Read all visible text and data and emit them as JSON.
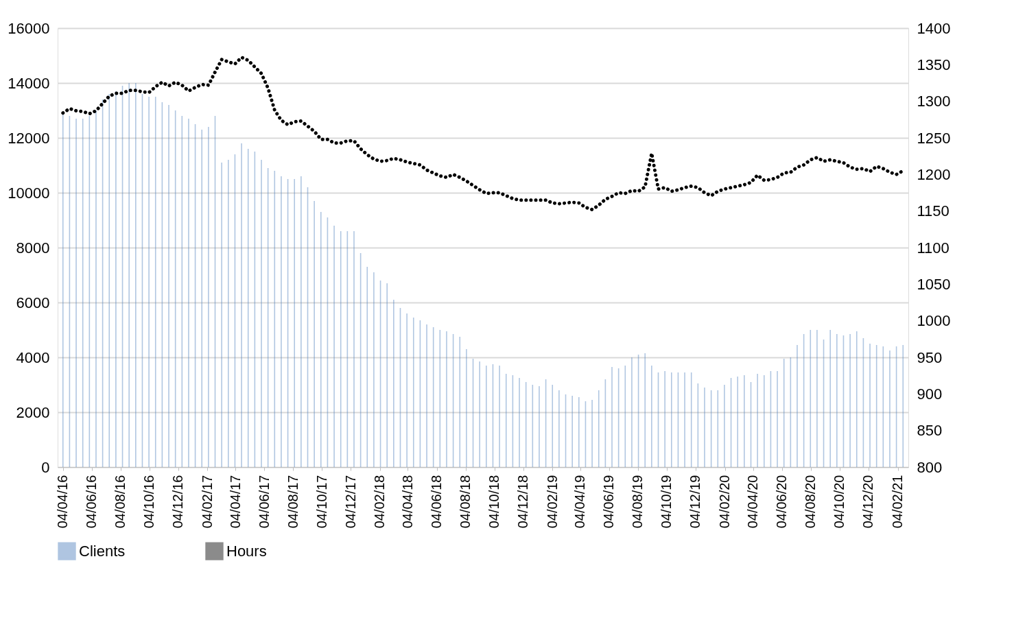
{
  "chart_data": {
    "type": "bar",
    "grid": "y",
    "legend": "bottom",
    "line_style": "dotted",
    "xlim": [
      "2016-03-31",
      "2021-02-19"
    ],
    "xticks": [
      {
        "value": "2016-04-04",
        "label": "04/04/16"
      },
      {
        "value": "2016-06-04",
        "label": "04/06/16"
      },
      {
        "value": "2016-08-04",
        "label": "04/08/16"
      },
      {
        "value": "2016-10-04",
        "label": "04/10/16"
      },
      {
        "value": "2016-12-04",
        "label": "04/12/16"
      },
      {
        "value": "2017-02-04",
        "label": "04/02/17"
      },
      {
        "value": "2017-04-04",
        "label": "04/04/17"
      },
      {
        "value": "2017-06-04",
        "label": "04/06/17"
      },
      {
        "value": "2017-08-04",
        "label": "04/08/17"
      },
      {
        "value": "2017-10-04",
        "label": "04/10/17"
      },
      {
        "value": "2017-12-04",
        "label": "04/12/17"
      },
      {
        "value": "2018-02-04",
        "label": "04/02/18"
      },
      {
        "value": "2018-04-04",
        "label": "04/04/18"
      },
      {
        "value": "2018-06-04",
        "label": "04/06/18"
      },
      {
        "value": "2018-08-04",
        "label": "04/08/18"
      },
      {
        "value": "2018-10-04",
        "label": "04/10/18"
      },
      {
        "value": "2018-12-04",
        "label": "04/12/18"
      },
      {
        "value": "2019-02-04",
        "label": "04/02/19"
      },
      {
        "value": "2019-04-04",
        "label": "04/04/19"
      },
      {
        "value": "2019-06-04",
        "label": "04/06/19"
      },
      {
        "value": "2019-08-04",
        "label": "04/08/19"
      },
      {
        "value": "2019-10-04",
        "label": "04/10/19"
      },
      {
        "value": "2019-12-04",
        "label": "04/12/19"
      },
      {
        "value": "2020-02-04",
        "label": "04/02/20"
      },
      {
        "value": "2020-04-04",
        "label": "04/04/20"
      },
      {
        "value": "2020-06-04",
        "label": "04/06/20"
      },
      {
        "value": "2020-08-04",
        "label": "04/08/20"
      },
      {
        "value": "2020-10-04",
        "label": "04/10/20"
      },
      {
        "value": "2020-12-04",
        "label": "04/12/20"
      },
      {
        "value": "2021-02-04",
        "label": "04/02/21"
      }
    ],
    "ylim": [
      0,
      16000
    ],
    "yticks": [
      0,
      2000,
      4000,
      6000,
      8000,
      10000,
      12000,
      14000,
      16000
    ],
    "y2lim": [
      800,
      1400
    ],
    "y2ticks": [
      800,
      850,
      900,
      950,
      1000,
      1050,
      1100,
      1150,
      1200,
      1250,
      1300,
      1350,
      1400
    ],
    "x": [
      "2016-04-04",
      "2016-04-18",
      "2016-05-02",
      "2016-05-16",
      "2016-05-30",
      "2016-06-13",
      "2016-06-27",
      "2016-07-11",
      "2016-07-25",
      "2016-08-08",
      "2016-08-22",
      "2016-09-05",
      "2016-09-19",
      "2016-10-03",
      "2016-10-17",
      "2016-10-31",
      "2016-11-14",
      "2016-11-28",
      "2016-12-12",
      "2016-12-26",
      "2017-01-09",
      "2017-01-23",
      "2017-02-06",
      "2017-02-20",
      "2017-03-06",
      "2017-03-20",
      "2017-04-03",
      "2017-04-17",
      "2017-05-01",
      "2017-05-15",
      "2017-05-29",
      "2017-06-12",
      "2017-06-26",
      "2017-07-10",
      "2017-07-24",
      "2017-08-07",
      "2017-08-21",
      "2017-09-04",
      "2017-09-18",
      "2017-10-02",
      "2017-10-16",
      "2017-10-30",
      "2017-11-13",
      "2017-11-27",
      "2017-12-11",
      "2017-12-25",
      "2018-01-08",
      "2018-01-22",
      "2018-02-05",
      "2018-02-19",
      "2018-03-05",
      "2018-03-19",
      "2018-04-02",
      "2018-04-16",
      "2018-04-30",
      "2018-05-14",
      "2018-05-28",
      "2018-06-11",
      "2018-06-25",
      "2018-07-09",
      "2018-07-23",
      "2018-08-06",
      "2018-08-20",
      "2018-09-03",
      "2018-09-17",
      "2018-10-01",
      "2018-10-15",
      "2018-10-29",
      "2018-11-12",
      "2018-11-26",
      "2018-12-10",
      "2018-12-24",
      "2019-01-07",
      "2019-01-21",
      "2019-02-04",
      "2019-02-18",
      "2019-03-04",
      "2019-03-18",
      "2019-04-01",
      "2019-04-15",
      "2019-04-29",
      "2019-05-13",
      "2019-05-27",
      "2019-06-10",
      "2019-06-24",
      "2019-07-08",
      "2019-07-22",
      "2019-08-05",
      "2019-08-19",
      "2019-09-02",
      "2019-09-16",
      "2019-09-30",
      "2019-10-14",
      "2019-10-28",
      "2019-11-11",
      "2019-11-25",
      "2019-12-09",
      "2019-12-23",
      "2020-01-06",
      "2020-01-20",
      "2020-02-03",
      "2020-02-17",
      "2020-03-02",
      "2020-03-16",
      "2020-03-30",
      "2020-04-13",
      "2020-04-27",
      "2020-05-11",
      "2020-05-25",
      "2020-06-08",
      "2020-06-22",
      "2020-07-06",
      "2020-07-20",
      "2020-08-03",
      "2020-08-17",
      "2020-08-31",
      "2020-09-14",
      "2020-09-28",
      "2020-10-12",
      "2020-10-26",
      "2020-11-09",
      "2020-11-23",
      "2020-12-07",
      "2020-12-21",
      "2021-01-04",
      "2021-01-18",
      "2021-02-01",
      "2021-02-15"
    ],
    "series": [
      {
        "name": "Clients",
        "color": "#4f81bd",
        "values": [
          12900,
          12800,
          12700,
          12700,
          12800,
          13000,
          13400,
          13600,
          13700,
          13900,
          14000,
          14000,
          13600,
          13500,
          13500,
          13300,
          13200,
          13000,
          12800,
          12700,
          12500,
          12300,
          12400,
          12800,
          11100,
          11200,
          11400,
          11800,
          11600,
          11500,
          11200,
          10900,
          10800,
          10600,
          10500,
          10500,
          10600,
          10200,
          9700,
          9300,
          9100,
          8800,
          8600,
          8600,
          8600,
          7800,
          7300,
          7100,
          6800,
          6700,
          6100,
          5800,
          5600,
          5450,
          5350,
          5200,
          5100,
          5000,
          4950,
          4850,
          4750,
          4300,
          3950,
          3850,
          3700,
          3750,
          3700,
          3400,
          3350,
          3250,
          3100,
          3000,
          2950,
          3200,
          3000,
          2800,
          2650,
          2600,
          2550,
          2400,
          2450,
          2800,
          3200,
          3650,
          3600,
          3700,
          4000,
          4100,
          4150,
          3700,
          3450,
          3500,
          3450,
          3450,
          3450,
          3450,
          3050,
          2900,
          2800,
          2800,
          3000,
          3250,
          3300,
          3350,
          3100,
          3400,
          3350,
          3500,
          3500,
          3950,
          4000,
          4450,
          4850,
          5000,
          5000,
          4650,
          5000,
          4850,
          4800,
          4850,
          4950,
          4700,
          4500,
          4450,
          4400,
          4250,
          4400,
          4450
        ]
      },
      {
        "name": "Hours",
        "type": "line",
        "axis": "y2",
        "color": "#000000",
        "values": [
          1284,
          1290,
          1287,
          1286,
          1283,
          1287,
          1297,
          1307,
          1311,
          1311,
          1315,
          1315,
          1313,
          1312,
          1320,
          1326,
          1321,
          1326,
          1322,
          1314,
          1319,
          1323,
          1322,
          1340,
          1357,
          1354,
          1351,
          1360,
          1356,
          1347,
          1338,
          1318,
          1288,
          1274,
          1268,
          1272,
          1273,
          1266,
          1259,
          1248,
          1248,
          1243,
          1243,
          1246,
          1246,
          1235,
          1227,
          1221,
          1218,
          1219,
          1222,
          1220,
          1217,
          1215,
          1213,
          1206,
          1202,
          1198,
          1196,
          1200,
          1196,
          1191,
          1185,
          1179,
          1174,
          1175,
          1175,
          1171,
          1167,
          1165,
          1165,
          1165,
          1165,
          1165,
          1161,
          1160,
          1161,
          1162,
          1161,
          1155,
          1152,
          1158,
          1166,
          1170,
          1175,
          1174,
          1178,
          1177,
          1183,
          1229,
          1180,
          1182,
          1177,
          1179,
          1182,
          1184,
          1182,
          1175,
          1171,
          1177,
          1180,
          1182,
          1184,
          1186,
          1189,
          1199,
          1192,
          1193,
          1196,
          1202,
          1203,
          1210,
          1213,
          1220,
          1223,
          1218,
          1220,
          1218,
          1216,
          1210,
          1207,
          1208,
          1204,
          1211,
          1208,
          1203,
          1200,
          1205
        ]
      }
    ]
  }
}
